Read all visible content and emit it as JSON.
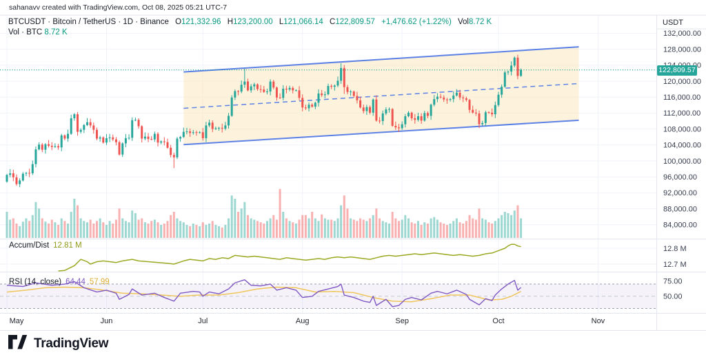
{
  "watermark": "sahanavv created with TradingView.com, Oct 08, 2025 05:21 UTC-7",
  "header": {
    "title": "BTCUSDT · Bitcoin / TetherUS · 1D · Binance",
    "ohlc": {
      "o_label": "O",
      "o": "121,332.96",
      "h_label": "H",
      "h": "123,200.00",
      "l_label": "L",
      "l": "121,066.14",
      "c_label": "C",
      "c": "122,809.57",
      "change": "+1,476.62 (+1.22%)",
      "vol_label": "Vol",
      "vol": "8.72 K"
    },
    "vol_row": {
      "label": "Vol · BTC",
      "value": "8.72 K"
    }
  },
  "panes": {
    "accum_dist": {
      "label": "Accum/Dist",
      "value": "12.81 M"
    },
    "rsi": {
      "label": "RSI (14, close)",
      "value": "64.44",
      "ma_value": "57.99"
    }
  },
  "price_axis": {
    "currency": "USDT",
    "last_price": "122,809.57",
    "last_price_value": 122.809,
    "ticks": [
      {
        "label": "132,000.00",
        "v": 132
      },
      {
        "label": "128,000.00",
        "v": 128
      },
      {
        "label": "124,000.00",
        "v": 124
      },
      {
        "label": "120,000.00",
        "v": 120
      },
      {
        "label": "116,000.00",
        "v": 116
      },
      {
        "label": "112,000.00",
        "v": 112
      },
      {
        "label": "108,000.00",
        "v": 108
      },
      {
        "label": "104,000.00",
        "v": 104
      },
      {
        "label": "100,000.00",
        "v": 100
      },
      {
        "label": "96,000.00",
        "v": 96
      },
      {
        "label": "92,000.00",
        "v": 92
      },
      {
        "label": "88,000.00",
        "v": 88
      },
      {
        "label": "84,000.00",
        "v": 84
      }
    ]
  },
  "time_axis": {
    "labels": [
      "May",
      "Jun",
      "Jul",
      "Aug",
      "Sep",
      "Oct",
      "Nov"
    ],
    "month_start_indices": [
      0,
      31,
      61,
      92,
      123,
      153,
      184
    ]
  },
  "footer": {
    "brand": "TradingView"
  },
  "colors": {
    "up": "#26a69a",
    "down": "#ef5350",
    "vol_up": "rgba(38,166,154,0.45)",
    "vol_down": "rgba(239,83,80,0.45)",
    "accent_text": "#089981",
    "channel_line": "#5b80e6",
    "channel_fill": "rgba(251,230,183,0.5)",
    "ad_line": "#9aa71f",
    "rsi_line": "#7e57c2",
    "rsi_ma": "#f0c65a",
    "rsi_band": "rgba(126,87,194,0.08)",
    "grid": "#f0f3fa",
    "border": "#e3e6ee",
    "axis_text": "#363c4e",
    "last_price_bg": "#26a69a"
  },
  "chart_data": {
    "type": "candlestick",
    "symbol": "BTCUSDT",
    "interval": "1D",
    "x_range": [
      "2025-05-01",
      "2025-10-08"
    ],
    "price_unit": "USD thousands",
    "ylim": [
      82,
      134
    ],
    "closes": [
      96.5,
      96.9,
      95.9,
      94.2,
      95.1,
      96.8,
      97.0,
      96.9,
      99.2,
      102.9,
      104.1,
      102.8,
      104.2,
      103.8,
      103.5,
      103.7,
      103.4,
      106.4,
      105.6,
      106.8,
      110.7,
      111.7,
      107.3,
      107.8,
      109.0,
      109.7,
      108.9,
      107.8,
      105.6,
      105.9,
      104.6,
      105.7,
      105.9,
      105.4,
      104.7,
      101.6,
      104.4,
      105.7,
      105.8,
      110.2,
      110.3,
      108.7,
      105.6,
      106.1,
      105.5,
      105.4,
      106.8,
      104.6,
      104.9,
      104.7,
      103.3,
      101.5,
      100.9,
      105.6,
      106.0,
      107.3,
      107.4,
      107.0,
      107.2,
      107.1,
      107.2,
      105.7,
      108.9,
      109.6,
      108.0,
      108.2,
      108.3,
      108.1,
      108.9,
      111.3,
      115.9,
      117.5,
      117.4,
      119.1,
      119.9,
      117.7,
      118.7,
      119.2,
      118.0,
      117.9,
      117.3,
      117.4,
      119.9,
      118.4,
      115.9,
      115.8,
      118.1,
      117.9,
      118.3,
      117.7,
      117.7,
      115.8,
      113.4,
      113.2,
      114.1,
      113.6,
      114.6,
      116.9,
      116.5,
      116.7,
      118.8,
      118.6,
      118.9,
      120.1,
      123.3,
      118.5,
      117.3,
      117.4,
      116.3,
      115.2,
      113.4,
      112.5,
      113.5,
      112.1,
      115.4,
      110.1,
      110.0,
      111.9,
      112.9,
      113.0,
      108.8,
      108.4,
      108.2,
      109.2,
      111.2,
      112.1,
      110.7,
      110.3,
      111.2,
      110.1,
      112.0,
      111.3,
      114.1,
      115.5,
      116.1,
      115.9,
      115.4,
      115.3,
      115.5,
      116.4,
      117.1,
      115.9,
      115.7,
      115.3,
      112.8,
      112.1,
      111.9,
      109.2,
      109.5,
      112.2,
      112.1,
      111.7,
      114.0,
      116.6,
      118.6,
      122.2,
      122.4,
      123.9,
      125.9,
      121.3,
      122.81
    ],
    "overrides": {
      "0": {
        "o": 94.8
      },
      "21": {
        "h": 112.0
      },
      "52": {
        "l": 98.2
      },
      "74": {
        "h": 123.1
      },
      "104": {
        "h": 124.5
      },
      "105": {
        "l": 116.8
      },
      "158": {
        "h": 126.2
      },
      "159": {
        "l": 120.5
      },
      "160": {
        "o": 121.33,
        "h": 123.2,
        "l": 121.07
      }
    },
    "volumes": [
      40,
      28,
      30,
      22,
      18,
      25,
      30,
      26,
      35,
      55,
      45,
      30,
      25,
      22,
      28,
      24,
      20,
      30,
      26,
      22,
      40,
      60,
      50,
      30,
      26,
      24,
      28,
      22,
      26,
      30,
      24,
      20,
      26,
      22,
      28,
      45,
      30,
      26,
      24,
      42,
      38,
      28,
      30,
      24,
      22,
      26,
      28,
      24,
      20,
      22,
      26,
      35,
      40,
      30,
      26,
      24,
      20,
      18,
      22,
      20,
      18,
      24,
      20,
      22,
      26,
      20,
      18,
      16,
      20,
      30,
      65,
      60,
      40,
      45,
      55,
      35,
      30,
      28,
      26,
      24,
      22,
      26,
      30,
      35,
      28,
      75,
      40,
      30,
      26,
      24,
      22,
      28,
      35,
      35,
      30,
      40,
      30,
      26,
      36,
      30,
      28,
      28,
      26,
      30,
      50,
      65,
      45,
      30,
      28,
      26,
      30,
      28,
      26,
      30,
      35,
      45,
      30,
      26,
      24,
      22,
      40,
      30,
      26,
      28,
      35,
      30,
      24,
      22,
      26,
      20,
      24,
      22,
      30,
      32,
      28,
      24,
      22,
      20,
      22,
      26,
      30,
      24,
      22,
      26,
      35,
      30,
      28,
      45,
      30,
      28,
      24,
      22,
      26,
      30,
      35,
      40,
      38,
      35,
      42,
      50,
      30
    ],
    "channel": {
      "start_index": 55,
      "end_index": 178,
      "top_start": 122.3,
      "top_end": 128.6,
      "bottom_start": 104.1,
      "bottom_end": 110.2
    },
    "accum_dist": {
      "unit": "M",
      "axis_ticks": [
        {
          "label": "12.8 M",
          "v": 12.8
        },
        {
          "label": "12.7 M",
          "v": 12.7
        }
      ],
      "points": [
        [
          16,
          12.63
        ],
        [
          18,
          12.66
        ],
        [
          21,
          12.69
        ],
        [
          23,
          12.73
        ],
        [
          25,
          12.715
        ],
        [
          26,
          12.7
        ],
        [
          28,
          12.715
        ],
        [
          30,
          12.72
        ],
        [
          32,
          12.715
        ],
        [
          34,
          12.71
        ],
        [
          36,
          12.72
        ],
        [
          39,
          12.73
        ],
        [
          41,
          12.72
        ],
        [
          44,
          12.715
        ],
        [
          47,
          12.71
        ],
        [
          50,
          12.705
        ],
        [
          52,
          12.7
        ],
        [
          55,
          12.72
        ],
        [
          57,
          12.73
        ],
        [
          59,
          12.725
        ],
        [
          61,
          12.72
        ],
        [
          63,
          12.735
        ],
        [
          65,
          12.73
        ],
        [
          67,
          12.74
        ],
        [
          69,
          12.735
        ],
        [
          71,
          12.755
        ],
        [
          73,
          12.75
        ],
        [
          75,
          12.745
        ],
        [
          77,
          12.75
        ],
        [
          79,
          12.745
        ],
        [
          81,
          12.74
        ],
        [
          83,
          12.735
        ],
        [
          85,
          12.73
        ],
        [
          87,
          12.74
        ],
        [
          89,
          12.735
        ],
        [
          91,
          12.73
        ],
        [
          93,
          12.725
        ],
        [
          95,
          12.73
        ],
        [
          97,
          12.735
        ],
        [
          99,
          12.73
        ],
        [
          101,
          12.74
        ],
        [
          103,
          12.745
        ],
        [
          105,
          12.74
        ],
        [
          107,
          12.745
        ],
        [
          109,
          12.74
        ],
        [
          111,
          12.735
        ],
        [
          113,
          12.73
        ],
        [
          115,
          12.74
        ],
        [
          117,
          12.75
        ],
        [
          119,
          12.755
        ],
        [
          121,
          12.75
        ],
        [
          123,
          12.755
        ],
        [
          125,
          12.76
        ],
        [
          127,
          12.765
        ],
        [
          129,
          12.76
        ],
        [
          131,
          12.765
        ],
        [
          133,
          12.77
        ],
        [
          135,
          12.765
        ],
        [
          137,
          12.76
        ],
        [
          139,
          12.755
        ],
        [
          141,
          12.76
        ],
        [
          143,
          12.755
        ],
        [
          145,
          12.75
        ],
        [
          147,
          12.755
        ],
        [
          149,
          12.765
        ],
        [
          151,
          12.77
        ],
        [
          153,
          12.785
        ],
        [
          155,
          12.8
        ],
        [
          156,
          12.815
        ],
        [
          157,
          12.825
        ],
        [
          158,
          12.825
        ],
        [
          159,
          12.815
        ],
        [
          160,
          12.81
        ]
      ]
    },
    "rsi": {
      "levels": [
        70,
        50,
        30
      ],
      "axis_ticks": [
        {
          "label": "75.00",
          "v": 75
        },
        {
          "label": "50.00",
          "v": 50
        }
      ],
      "points": [
        [
          0,
          68
        ],
        [
          5,
          66
        ],
        [
          9,
          72
        ],
        [
          14,
          68
        ],
        [
          18,
          70
        ],
        [
          21,
          74
        ],
        [
          24,
          64
        ],
        [
          28,
          57
        ],
        [
          31,
          60
        ],
        [
          34,
          55
        ],
        [
          35,
          45
        ],
        [
          38,
          53
        ],
        [
          39,
          62
        ],
        [
          42,
          52
        ],
        [
          46,
          55
        ],
        [
          49,
          48
        ],
        [
          52,
          42
        ],
        [
          54,
          55
        ],
        [
          58,
          58
        ],
        [
          60,
          57
        ],
        [
          61,
          50
        ],
        [
          63,
          57
        ],
        [
          66,
          54
        ],
        [
          69,
          62
        ],
        [
          71,
          72
        ],
        [
          74,
          77
        ],
        [
          76,
          68
        ],
        [
          79,
          67
        ],
        [
          82,
          70
        ],
        [
          84,
          60
        ],
        [
          87,
          64
        ],
        [
          90,
          60
        ],
        [
          92,
          48
        ],
        [
          95,
          50
        ],
        [
          97,
          58
        ],
        [
          100,
          62
        ],
        [
          103,
          66
        ],
        [
          104,
          70
        ],
        [
          105,
          52
        ],
        [
          108,
          48
        ],
        [
          111,
          42
        ],
        [
          113,
          40
        ],
        [
          114,
          50
        ],
        [
          115,
          35
        ],
        [
          118,
          45
        ],
        [
          120,
          33
        ],
        [
          122,
          35
        ],
        [
          124,
          45
        ],
        [
          126,
          48
        ],
        [
          129,
          44
        ],
        [
          132,
          55
        ],
        [
          134,
          58
        ],
        [
          137,
          54
        ],
        [
          140,
          60
        ],
        [
          143,
          53
        ],
        [
          144,
          45
        ],
        [
          147,
          36
        ],
        [
          149,
          46
        ],
        [
          151,
          43
        ],
        [
          152,
          52
        ],
        [
          154,
          62
        ],
        [
          156,
          70
        ],
        [
          158,
          76
        ],
        [
          159,
          60
        ],
        [
          160,
          64.4
        ]
      ],
      "ma_points": [
        [
          0,
          57
        ],
        [
          6,
          60
        ],
        [
          12,
          64
        ],
        [
          18,
          65
        ],
        [
          24,
          64
        ],
        [
          30,
          60
        ],
        [
          36,
          55
        ],
        [
          42,
          54
        ],
        [
          48,
          52
        ],
        [
          54,
          50
        ],
        [
          60,
          52
        ],
        [
          66,
          52
        ],
        [
          72,
          56
        ],
        [
          78,
          62
        ],
        [
          84,
          65
        ],
        [
          90,
          64
        ],
        [
          96,
          57
        ],
        [
          102,
          58
        ],
        [
          108,
          56
        ],
        [
          114,
          48
        ],
        [
          120,
          42
        ],
        [
          126,
          41
        ],
        [
          132,
          46
        ],
        [
          138,
          52
        ],
        [
          144,
          52
        ],
        [
          150,
          44
        ],
        [
          154,
          45
        ],
        [
          157,
          50
        ],
        [
          160,
          58
        ]
      ]
    }
  }
}
